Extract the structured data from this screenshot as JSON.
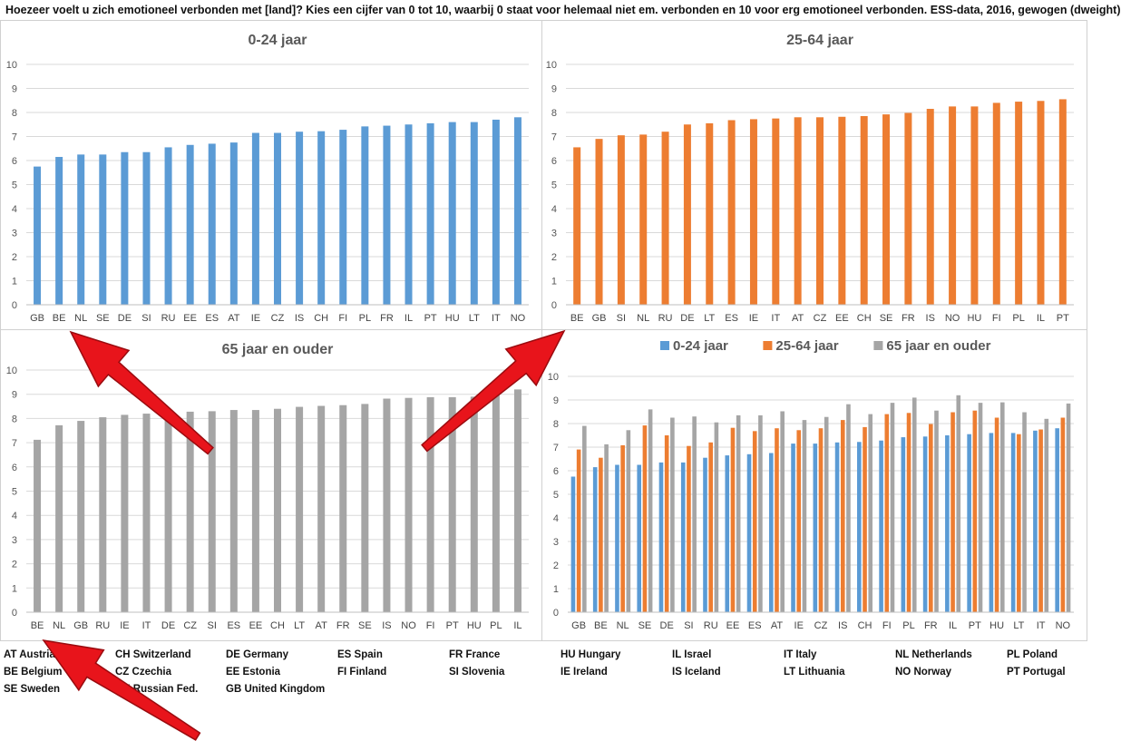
{
  "header": {
    "text": "Hoezeer voelt u zich emotioneel verbonden met [land]? Kies een cijfer van 0 tot 10, waarbij 0 staat voor helemaal niet em. verbonden en 10 voor erg emotioneel  verbonden. ESS-data, 2016, gewogen (dweight)"
  },
  "colors": {
    "young": "#5B9BD5",
    "middle": "#ED7D31",
    "old": "#A5A5A5",
    "arrow": "#E8141B"
  },
  "chart_data": [
    {
      "type": "bar",
      "title": "0-24 jaar",
      "ylim": [
        0,
        10
      ],
      "yticks": [
        0,
        1,
        2,
        3,
        4,
        5,
        6,
        7,
        8,
        9,
        10
      ],
      "grid": true,
      "color": "#5B9BD5",
      "categories": [
        "GB",
        "BE",
        "NL",
        "SE",
        "DE",
        "SI",
        "RU",
        "EE",
        "ES",
        "AT",
        "IE",
        "CZ",
        "IS",
        "CH",
        "FI",
        "PL",
        "FR",
        "IL",
        "PT",
        "HU",
        "LT",
        "IT",
        "NO"
      ],
      "values": [
        5.75,
        6.15,
        6.25,
        6.25,
        6.35,
        6.35,
        6.55,
        6.65,
        6.7,
        6.75,
        7.15,
        7.15,
        7.2,
        7.22,
        7.28,
        7.42,
        7.45,
        7.5,
        7.55,
        7.6,
        7.6,
        7.7,
        7.8
      ]
    },
    {
      "type": "bar",
      "title": "25-64 jaar",
      "ylim": [
        0,
        10
      ],
      "yticks": [
        0,
        1,
        2,
        3,
        4,
        5,
        6,
        7,
        8,
        9,
        10
      ],
      "grid": true,
      "color": "#ED7D31",
      "categories": [
        "BE",
        "GB",
        "SI",
        "NL",
        "RU",
        "DE",
        "LT",
        "ES",
        "IE",
        "IT",
        "AT",
        "CZ",
        "EE",
        "CH",
        "SE",
        "FR",
        "IS",
        "NO",
        "HU",
        "FI",
        "PL",
        "IL",
        "PT"
      ],
      "values": [
        6.55,
        6.9,
        7.05,
        7.08,
        7.2,
        7.5,
        7.55,
        7.68,
        7.72,
        7.75,
        7.8,
        7.8,
        7.82,
        7.85,
        7.92,
        7.98,
        8.15,
        8.25,
        8.25,
        8.4,
        8.45,
        8.48,
        8.55
      ]
    },
    {
      "type": "bar",
      "title": "65 jaar en ouder",
      "ylim": [
        0,
        10
      ],
      "yticks": [
        0,
        1,
        2,
        3,
        4,
        5,
        6,
        7,
        8,
        9,
        10
      ],
      "grid": true,
      "color": "#A5A5A5",
      "categories": [
        "BE",
        "NL",
        "GB",
        "RU",
        "IE",
        "IT",
        "DE",
        "CZ",
        "SI",
        "ES",
        "EE",
        "CH",
        "LT",
        "AT",
        "FR",
        "SE",
        "IS",
        "NO",
        "FI",
        "PT",
        "HU",
        "PL",
        "IL"
      ],
      "values": [
        7.12,
        7.72,
        7.9,
        8.05,
        8.15,
        8.2,
        8.25,
        8.28,
        8.3,
        8.35,
        8.35,
        8.4,
        8.48,
        8.52,
        8.55,
        8.6,
        8.82,
        8.85,
        8.88,
        8.88,
        8.9,
        9.1,
        9.2
      ]
    },
    {
      "type": "bar",
      "title": "",
      "ylim": [
        0,
        10
      ],
      "yticks": [
        0,
        1,
        2,
        3,
        4,
        5,
        6,
        7,
        8,
        9,
        10
      ],
      "grid": true,
      "legend": "top",
      "categories": [
        "GB",
        "BE",
        "NL",
        "SE",
        "DE",
        "SI",
        "RU",
        "EE",
        "ES",
        "AT",
        "IE",
        "CZ",
        "IS",
        "CH",
        "FI",
        "PL",
        "FR",
        "IL",
        "PT",
        "HU",
        "LT",
        "IT",
        "NO"
      ],
      "series": [
        {
          "name": "0-24 jaar",
          "color": "#5B9BD5",
          "values": [
            5.75,
            6.15,
            6.25,
            6.25,
            6.35,
            6.35,
            6.55,
            6.65,
            6.7,
            6.75,
            7.15,
            7.15,
            7.2,
            7.22,
            7.28,
            7.42,
            7.45,
            7.5,
            7.55,
            7.6,
            7.6,
            7.7,
            7.8
          ]
        },
        {
          "name": "25-64 jaar",
          "color": "#ED7D31",
          "values": [
            6.9,
            6.55,
            7.08,
            7.92,
            7.5,
            7.05,
            7.2,
            7.82,
            7.68,
            7.8,
            7.72,
            7.8,
            8.15,
            7.85,
            8.4,
            8.45,
            7.98,
            8.48,
            8.55,
            8.25,
            7.55,
            7.75,
            8.25
          ]
        },
        {
          "name": "65 jaar en ouder",
          "color": "#A5A5A5",
          "values": [
            7.9,
            7.12,
            7.72,
            8.6,
            8.25,
            8.3,
            8.05,
            8.35,
            8.35,
            8.52,
            8.15,
            8.28,
            8.82,
            8.4,
            8.88,
            9.1,
            8.55,
            9.2,
            8.88,
            8.9,
            8.48,
            8.2,
            8.85
          ]
        }
      ]
    }
  ],
  "legend_rows": [
    [
      "AT Austria",
      "CH Switzerland",
      "DE Germany",
      "ES Spain",
      "FR France",
      "HU Hungary",
      "IL Israel",
      "IT Italy",
      "NL Netherlands",
      "PL Poland"
    ],
    [
      "BE Belgium",
      "CZ Czechia",
      "EE Estonia",
      "FI Finland",
      "SI Slovenia",
      "IE Ireland",
      "IS Iceland",
      "LT Lithuania",
      "NO Norway",
      "PT Portugal"
    ],
    [
      "SE Sweden",
      "RU Russian Fed.",
      "GB United Kingdom"
    ]
  ]
}
